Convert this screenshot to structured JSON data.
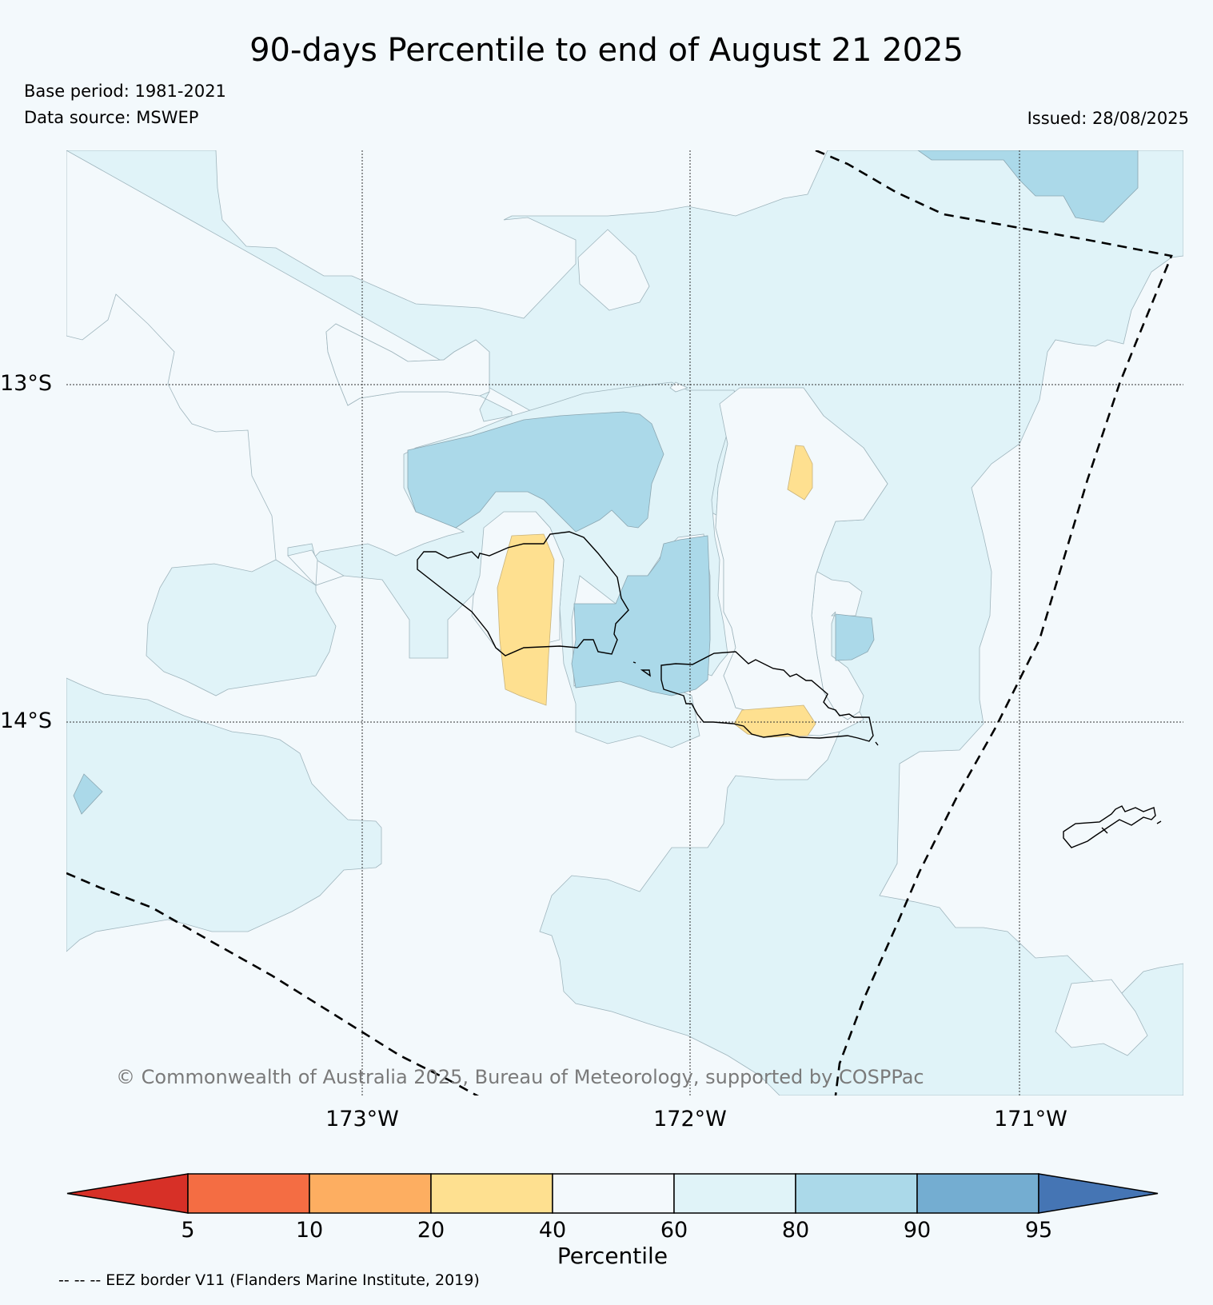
{
  "title": "90-days Percentile to end of August 21 2025",
  "base_period": "Base period: 1981-2021",
  "data_source": "Data source: MSWEP",
  "issued": "Issued: 28/08/2025",
  "copyright": "© Commonwealth of Australia 2025, Bureau of Meteorology, supported by COSPPac",
  "eez_note": "-- -- -- EEZ border V11 (Flanders Marine Institute, 2019)",
  "axes": {
    "lat_labels": [
      "13°S",
      "14°S"
    ],
    "lon_labels": [
      "173°W",
      "172°W",
      "171°W"
    ]
  },
  "colorbar": {
    "label": "Percentile",
    "ticks": [
      "5",
      "10",
      "20",
      "40",
      "60",
      "80",
      "90",
      "95"
    ],
    "colors": {
      "below_5": "#d73027",
      "5_10": "#f46d43",
      "10_20": "#fdae61",
      "20_40": "#fee090",
      "40_60": "#f3f9fc",
      "60_80": "#e0f3f8",
      "80_90": "#abd9e9",
      "90_95": "#74add1",
      "above_95": "#4575b4"
    }
  },
  "colors": {
    "background": "#f3f9fc",
    "band_60_80": "#e0f3f8",
    "band_80_90": "#abd9e9",
    "band_20_40": "#fee090"
  }
}
